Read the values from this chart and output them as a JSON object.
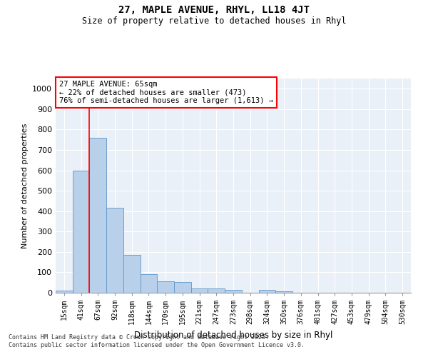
{
  "title1": "27, MAPLE AVENUE, RHYL, LL18 4JT",
  "title2": "Size of property relative to detached houses in Rhyl",
  "xlabel": "Distribution of detached houses by size in Rhyl",
  "ylabel": "Number of detached properties",
  "categories": [
    "15sqm",
    "41sqm",
    "67sqm",
    "92sqm",
    "118sqm",
    "144sqm",
    "170sqm",
    "195sqm",
    "221sqm",
    "247sqm",
    "273sqm",
    "298sqm",
    "324sqm",
    "350sqm",
    "376sqm",
    "401sqm",
    "427sqm",
    "453sqm",
    "479sqm",
    "504sqm",
    "530sqm"
  ],
  "values": [
    10,
    600,
    760,
    415,
    185,
    92,
    55,
    52,
    20,
    20,
    15,
    0,
    15,
    8,
    0,
    0,
    0,
    0,
    0,
    0,
    0
  ],
  "bar_color": "#b8d0ea",
  "bar_edge_color": "#5f96c8",
  "red_line_x": 1.5,
  "annotation_title": "27 MAPLE AVENUE: 65sqm",
  "annotation_line1": "← 22% of detached houses are smaller (473)",
  "annotation_line2": "76% of semi-detached houses are larger (1,613) →",
  "ylim": [
    0,
    1050
  ],
  "yticks": [
    0,
    100,
    200,
    300,
    400,
    500,
    600,
    700,
    800,
    900,
    1000
  ],
  "background_color": "#eaf0f8",
  "grid_color": "#ffffff",
  "footer1": "Contains HM Land Registry data © Crown copyright and database right 2025.",
  "footer2": "Contains public sector information licensed under the Open Government Licence v3.0."
}
